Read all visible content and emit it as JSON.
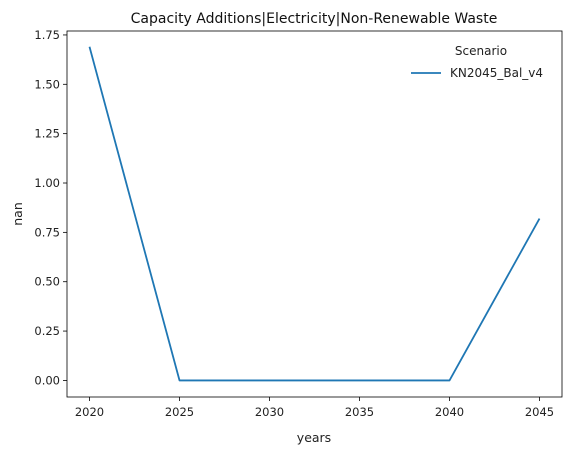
{
  "chart_data": {
    "type": "line",
    "title": "Capacity Additions|Electricity|Non-Renewable Waste",
    "xlabel": "years",
    "ylabel": "nan",
    "x": [
      2020,
      2025,
      2030,
      2035,
      2040,
      2045
    ],
    "x_ticks": [
      "2020",
      "2025",
      "2030",
      "2035",
      "2040",
      "2045"
    ],
    "y_ticks": [
      "0.00",
      "0.25",
      "0.50",
      "0.75",
      "1.00",
      "1.25",
      "1.50",
      "1.75"
    ],
    "xlim": [
      2018.75,
      2046.25
    ],
    "ylim": [
      -0.084,
      1.77
    ],
    "grid": false,
    "legend": {
      "title": "Scenario",
      "position": "top-right"
    },
    "series": [
      {
        "name": "KN2045_Bal_v4",
        "color": "#1f77b4",
        "values": [
          1.69,
          0.0,
          0.0,
          0.0,
          0.0,
          0.82
        ]
      }
    ]
  }
}
